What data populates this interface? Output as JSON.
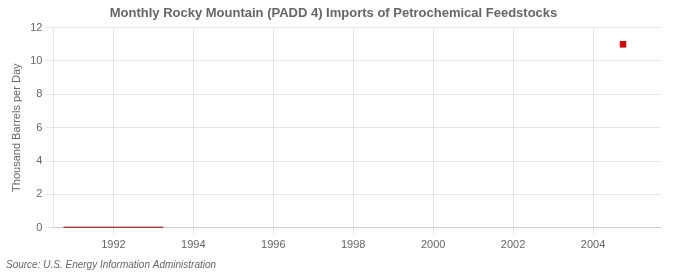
{
  "chart_data": {
    "type": "line",
    "title": "Monthly Rocky Mountain (PADD 4) Imports of Petrochemical Feedstocks",
    "ylabel": "Thousand Barrels per Day",
    "source": "Source: U.S. Energy Information Administration",
    "xlim": [
      1990.5,
      2005.7
    ],
    "xticks": [
      1992,
      1994,
      1996,
      1998,
      2000,
      2002,
      2004
    ],
    "ylim": [
      0,
      12
    ],
    "yticks": [
      0,
      2,
      4,
      6,
      8,
      10,
      12
    ],
    "grid": true,
    "series": [
      {
        "type": "line",
        "color": "#8b0000",
        "line_style": "solid",
        "x": [
          1990.75,
          1991.0,
          1991.25,
          1991.5,
          1991.75,
          1992.0,
          1992.25,
          1992.5,
          1992.75,
          1993.0,
          1993.25
        ],
        "values": [
          0.0,
          0.0,
          0.0,
          0.0,
          0.0,
          0.0,
          0.0,
          0.0,
          0.0,
          0.0,
          0.0
        ]
      },
      {
        "type": "scatter",
        "color": "#cc0000",
        "marker": "square",
        "x": [
          2004.75
        ],
        "values": [
          11.0
        ]
      }
    ]
  }
}
